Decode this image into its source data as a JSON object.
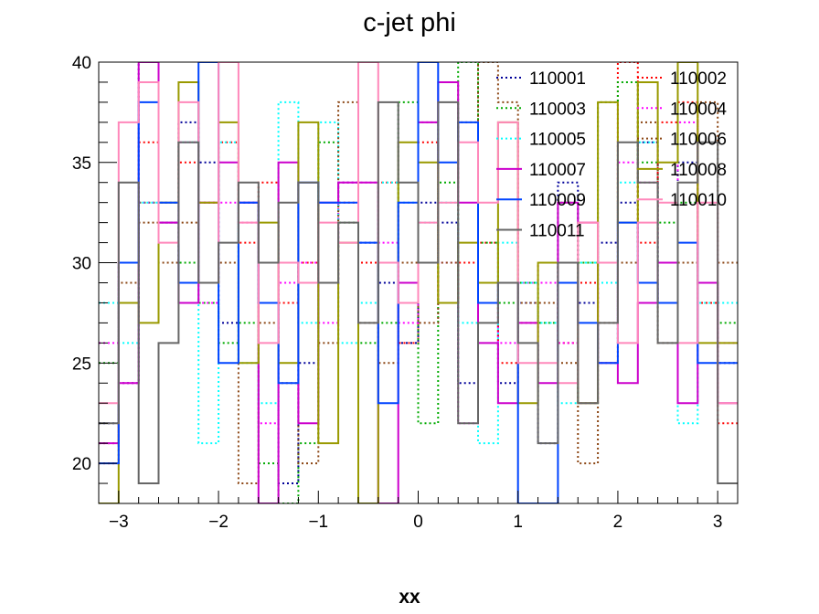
{
  "chart_data": {
    "type": "line",
    "style": "step-histogram",
    "title": "c-jet phi",
    "xlabel": "xx",
    "ylabel": "",
    "xlim": [
      -3.2,
      3.2
    ],
    "ylim": [
      18,
      40
    ],
    "xticks": [
      -3,
      -2,
      -1,
      0,
      1,
      2,
      3
    ],
    "xtick_labels": [
      "−3",
      "−2",
      "−1",
      "0",
      "1",
      "2",
      "3"
    ],
    "yticks": [
      20,
      25,
      30,
      35,
      40
    ],
    "ytick_labels": [
      "20",
      "25",
      "30",
      "35",
      "40"
    ],
    "bin_edges": [
      -3.2,
      -3.0,
      -2.8,
      -2.6,
      -2.4,
      -2.2,
      -2.0,
      -1.8,
      -1.6,
      -1.4,
      -1.2,
      -1.0,
      -0.8,
      -0.6,
      -0.4,
      -0.2,
      0.0,
      0.2,
      0.4,
      0.6,
      0.8,
      1.0,
      1.2,
      1.4,
      1.6,
      1.8,
      2.0,
      2.2,
      2.4,
      2.6,
      2.8,
      3.0,
      3.2
    ],
    "legend": {
      "position": "top-right",
      "columns": 2
    },
    "series": [
      {
        "name": "110001",
        "color": "#000099",
        "dash": "dot",
        "values": [
          22,
          24,
          40,
          32,
          37,
          35,
          27,
          33,
          28,
          19,
          25,
          29,
          34,
          31,
          29,
          26,
          33,
          32,
          24,
          28,
          24,
          28,
          21,
          34,
          28,
          31,
          33,
          36,
          30,
          35,
          29,
          25
        ]
      },
      {
        "name": "110002",
        "color": "#ff0000",
        "dash": "dot",
        "values": [
          20,
          30,
          36,
          33,
          35,
          33,
          36,
          31,
          34,
          28,
          30,
          29,
          33,
          30,
          34,
          26,
          36,
          28,
          30,
          31,
          25,
          27,
          30,
          26,
          29,
          25,
          40,
          31,
          37,
          38,
          28,
          22
        ]
      },
      {
        "name": "110003",
        "color": "#00aa00",
        "dash": "dot",
        "values": [
          25,
          28,
          33,
          32,
          30,
          28,
          26,
          27,
          20,
          18,
          21,
          36,
          32,
          26,
          27,
          38,
          22,
          34,
          40,
          31,
          28,
          29,
          27,
          33,
          30,
          38,
          39,
          35,
          32,
          33,
          29,
          27
        ]
      },
      {
        "name": "110004",
        "color": "#ff00ff",
        "dash": "dot",
        "values": [
          26,
          24,
          33,
          32,
          36,
          28,
          33,
          32,
          22,
          29,
          30,
          27,
          34,
          34,
          31,
          27,
          37,
          30,
          22,
          29,
          26,
          29,
          29,
          26,
          23,
          30,
          35,
          34,
          30,
          37,
          29,
          26
        ]
      },
      {
        "name": "110005",
        "color": "#00ffff",
        "dash": "dot",
        "values": [
          28,
          26,
          33,
          33,
          36,
          21,
          36,
          25,
          23,
          38,
          27,
          37,
          26,
          28,
          34,
          33,
          32,
          33,
          27,
          21,
          31,
          29,
          27,
          23,
          30,
          29,
          34,
          36,
          28,
          22,
          28,
          28
        ]
      },
      {
        "name": "110006",
        "color": "#8b4513",
        "dash": "dot",
        "values": [
          21,
          29,
          32,
          30,
          32,
          29,
          30,
          19,
          27,
          24,
          20,
          26,
          38,
          27,
          25,
          30,
          27,
          30,
          37,
          40,
          38,
          28,
          28,
          25,
          20,
          27,
          30,
          37,
          26,
          30,
          38,
          30
        ]
      },
      {
        "name": "110007",
        "color": "#cc00cc",
        "dash": "solid",
        "values": [
          21,
          24,
          40,
          32,
          28,
          33,
          35,
          33,
          18,
          35,
          22,
          33,
          34,
          34,
          18,
          29,
          37,
          39,
          33,
          26,
          23,
          27,
          24,
          33,
          32,
          25,
          24,
          28,
          30,
          23,
          29,
          23
        ]
      },
      {
        "name": "110008",
        "color": "#999900",
        "dash": "solid",
        "values": [
          18,
          28,
          27,
          33,
          39,
          33,
          37,
          25,
          32,
          25,
          37,
          21,
          31,
          18,
          30,
          36,
          35,
          28,
          31,
          29,
          37,
          23,
          30,
          30,
          23,
          38,
          32,
          39,
          35,
          40,
          26,
          26
        ]
      },
      {
        "name": "110009",
        "color": "#0044ff",
        "dash": "solid",
        "values": [
          20,
          30,
          38,
          33,
          29,
          40,
          25,
          33,
          28,
          24,
          34,
          33,
          33,
          31,
          23,
          33,
          40,
          35,
          37,
          28,
          29,
          18,
          18,
          29,
          27,
          25,
          32,
          29,
          28,
          31,
          25,
          25
        ]
      },
      {
        "name": "110010",
        "color": "#ff88bb",
        "dash": "solid",
        "values": [
          23,
          37,
          39,
          31,
          38,
          29,
          40,
          32,
          26,
          30,
          29,
          32,
          31,
          40,
          30,
          28,
          32,
          33,
          36,
          33,
          37,
          25,
          25,
          24,
          32,
          30,
          26,
          32,
          33,
          26,
          33,
          23
        ]
      },
      {
        "name": "110011",
        "color": "#666666",
        "dash": "solid",
        "values": [
          22,
          34,
          19,
          26,
          36,
          29,
          31,
          34,
          30,
          33,
          34,
          29,
          32,
          27,
          38,
          34,
          30,
          38,
          22,
          27,
          29,
          26,
          21,
          30,
          23,
          27,
          36,
          34,
          26,
          34,
          36,
          19
        ]
      }
    ]
  }
}
